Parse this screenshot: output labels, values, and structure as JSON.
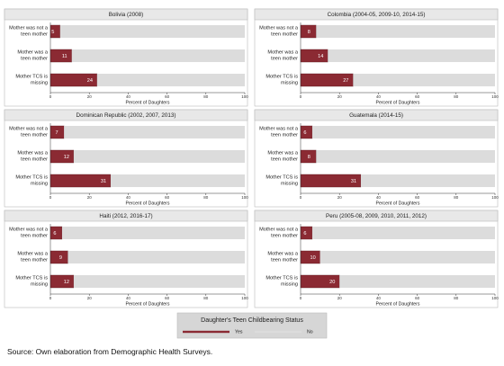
{
  "chart_data": [
    {
      "type": "bar",
      "orientation": "horizontal",
      "stacked": true,
      "title": "Bolivia (2008)",
      "categories": [
        "Mother was not a teen mother",
        "Mother was a teen mother",
        "Mother TCS is missing"
      ],
      "series": [
        {
          "name": "Yes",
          "color": "#8b2a33",
          "values": [
            5,
            11,
            24
          ]
        },
        {
          "name": "No",
          "color": "#dcdcdc",
          "values": [
            95,
            89,
            76
          ]
        }
      ],
      "xlim": [
        0,
        100
      ],
      "xticks": [
        0,
        20,
        40,
        60,
        80,
        100
      ],
      "xlabel": "Percent of Daughters"
    },
    {
      "type": "bar",
      "orientation": "horizontal",
      "stacked": true,
      "title": "Colombia (2004-05, 2009-10, 2014-15)",
      "categories": [
        "Mother was not a teen mother",
        "Mother was a teen mother",
        "Mother TCS is missing"
      ],
      "series": [
        {
          "name": "Yes",
          "color": "#8b2a33",
          "values": [
            8,
            14,
            27
          ]
        },
        {
          "name": "No",
          "color": "#dcdcdc",
          "values": [
            92,
            86,
            73
          ]
        }
      ],
      "xlim": [
        0,
        100
      ],
      "xticks": [
        0,
        20,
        40,
        60,
        80,
        100
      ],
      "xlabel": "Percent of Daughters"
    },
    {
      "type": "bar",
      "orientation": "horizontal",
      "stacked": true,
      "title": "Dominican Republic (2002, 2007, 2013)",
      "categories": [
        "Mother was not a teen mother",
        "Mother was a teen mother",
        "Mother TCS is missing"
      ],
      "series": [
        {
          "name": "Yes",
          "color": "#8b2a33",
          "values": [
            7,
            12,
            31
          ]
        },
        {
          "name": "No",
          "color": "#dcdcdc",
          "values": [
            93,
            88,
            69
          ]
        }
      ],
      "xlim": [
        0,
        100
      ],
      "xticks": [
        0,
        20,
        40,
        60,
        80,
        100
      ],
      "xlabel": "Percent of Daughters"
    },
    {
      "type": "bar",
      "orientation": "horizontal",
      "stacked": true,
      "title": "Guatemala (2014-15)",
      "categories": [
        "Mother was not a teen mother",
        "Mother was a teen mother",
        "Mother TCS is missing"
      ],
      "series": [
        {
          "name": "Yes",
          "color": "#8b2a33",
          "values": [
            6,
            8,
            31
          ]
        },
        {
          "name": "No",
          "color": "#dcdcdc",
          "values": [
            94,
            92,
            69
          ]
        }
      ],
      "xlim": [
        0,
        100
      ],
      "xticks": [
        0,
        20,
        40,
        60,
        80,
        100
      ],
      "xlabel": "Percent of Daughters"
    },
    {
      "type": "bar",
      "orientation": "horizontal",
      "stacked": true,
      "title": "Haiti (2012, 2016-17)",
      "categories": [
        "Mother was not a teen mother",
        "Mother was a teen mother",
        "Mother TCS is missing"
      ],
      "series": [
        {
          "name": "Yes",
          "color": "#8b2a33",
          "values": [
            6,
            9,
            12
          ]
        },
        {
          "name": "No",
          "color": "#dcdcdc",
          "values": [
            94,
            91,
            88
          ]
        }
      ],
      "xlim": [
        0,
        100
      ],
      "xticks": [
        0,
        20,
        40,
        60,
        80,
        100
      ],
      "xlabel": "Percent of Daughters"
    },
    {
      "type": "bar",
      "orientation": "horizontal",
      "stacked": true,
      "title": "Peru (2005-08, 2009, 2010, 2011, 2012)",
      "categories": [
        "Mother was not a teen mother",
        "Mother was a teen mother",
        "Mother TCS is missing"
      ],
      "series": [
        {
          "name": "Yes",
          "color": "#8b2a33",
          "values": [
            6,
            10,
            20
          ]
        },
        {
          "name": "No",
          "color": "#dcdcdc",
          "values": [
            94,
            90,
            80
          ]
        }
      ],
      "xlim": [
        0,
        100
      ],
      "xticks": [
        0,
        20,
        40,
        60,
        80,
        100
      ],
      "xlabel": "Percent of Daughters"
    }
  ],
  "legend_title": "Daughter's Teen Childbearing Status",
  "source": "Source: Own elaboration from Demographic Health Surveys."
}
